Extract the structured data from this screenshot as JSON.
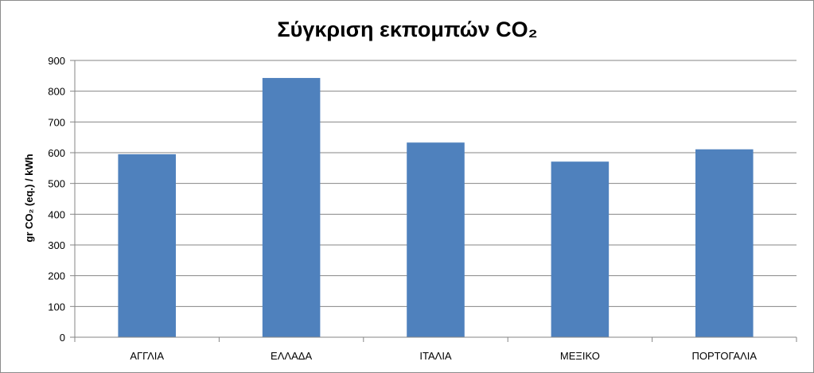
{
  "chart_data": {
    "type": "bar",
    "title": "Σύγκριση εκπομπών CO₂",
    "xlabel": "",
    "ylabel": "gr CO₂ (eq.) / kWh",
    "categories": [
      "ΑΓΓΛΙΑ",
      "ΕΛΛΑΔΑ",
      "ΙΤΑΛΙΑ",
      "ΜΕΞΙΚΟ",
      "ΠΟΡΤΟΓΑΛΙΑ"
    ],
    "values": [
      595,
      843,
      633,
      571,
      611
    ],
    "ylim": [
      0,
      900
    ],
    "yticks": [
      "0",
      "100",
      "200",
      "300",
      "400",
      "500",
      "600",
      "700",
      "800",
      "900"
    ],
    "grid": true,
    "legend": "none",
    "bar_color": "#4f81bd"
  }
}
